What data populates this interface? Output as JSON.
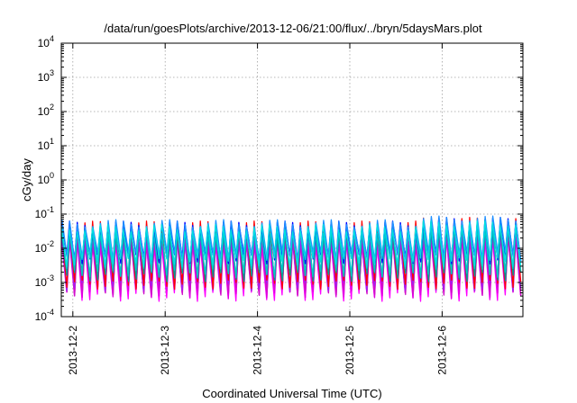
{
  "chart_data": {
    "type": "line",
    "title": "/data/run/goesPlots/archive/2013-12-06/21:00/flux/../bryn/5daysMars.plot",
    "xlabel": "Coordinated Universal Time (UTC)",
    "ylabel": "cGy/day",
    "yscale": "log",
    "ylim": [
      0.0001,
      10000
    ],
    "xlim": [
      "2013-12-01T21:00",
      "2013-12-06T21:00"
    ],
    "grid": true,
    "legend": "none",
    "x_ticks": [
      "2013-12-2",
      "2013-12-3",
      "2013-12-4",
      "2013-12-5",
      "2013-12-6"
    ],
    "y_ticks": [
      {
        "base": "10",
        "exp": "-4"
      },
      {
        "base": "10",
        "exp": "-3"
      },
      {
        "base": "10",
        "exp": "-2"
      },
      {
        "base": "10",
        "exp": "-1"
      },
      {
        "base": "10",
        "exp": "0"
      },
      {
        "base": "10",
        "exp": "1"
      },
      {
        "base": "10",
        "exp": "2"
      },
      {
        "base": "10",
        "exp": "3"
      },
      {
        "base": "10",
        "exp": "4"
      }
    ],
    "periodic_pattern": {
      "period_hours": 2,
      "cycles": 60
    },
    "series": [
      {
        "color": "#ff00ff",
        "peak": 0.015,
        "trough": 0.0004
      },
      {
        "color": "#e000e0",
        "peak": 0.018,
        "trough": 0.0005
      },
      {
        "color": "#d010c8",
        "peak": 0.02,
        "trough": 0.0006
      },
      {
        "color": "#a020f0",
        "peak": 0.022,
        "trough": 0.0008
      },
      {
        "color": "#ff0000",
        "peak": 0.05,
        "trough": 0.0009
      },
      {
        "color": "#009a9a",
        "peak": 0.03,
        "trough": 0.0015
      },
      {
        "color": "#00c8c8",
        "peak": 0.035,
        "trough": 0.002
      },
      {
        "color": "#0000ff",
        "peak": 0.05,
        "trough": 0.005
      },
      {
        "color": "#1e90ff",
        "peak": 0.055,
        "trough": 0.006
      },
      {
        "color": "#00e0e0",
        "peak": 0.04,
        "trough": 0.004
      }
    ]
  }
}
